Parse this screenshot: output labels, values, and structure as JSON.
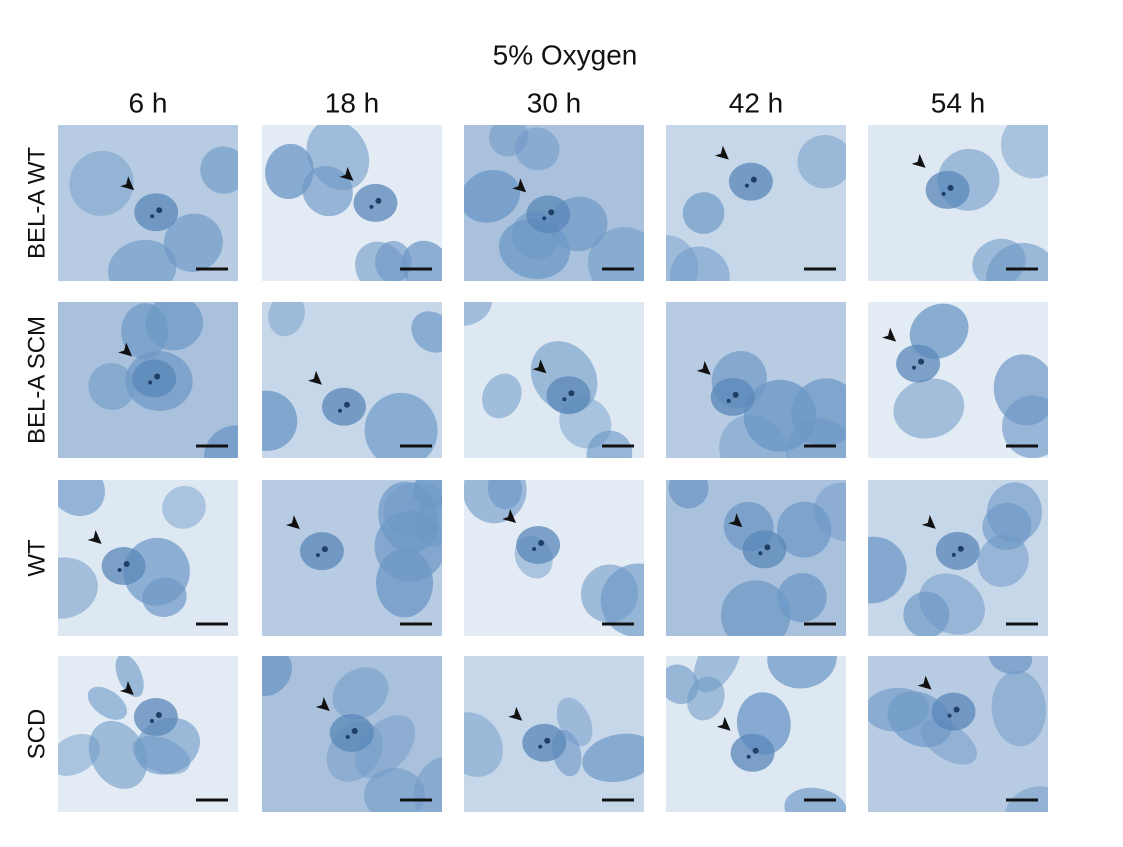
{
  "figure": {
    "title": "5% Oxygen",
    "columns": [
      "6 h",
      "18 h",
      "30 h",
      "42 h",
      "54 h"
    ],
    "rows": [
      "BEL-A WT",
      "BEL-A SCM",
      "WT",
      "SCD"
    ]
  }
}
